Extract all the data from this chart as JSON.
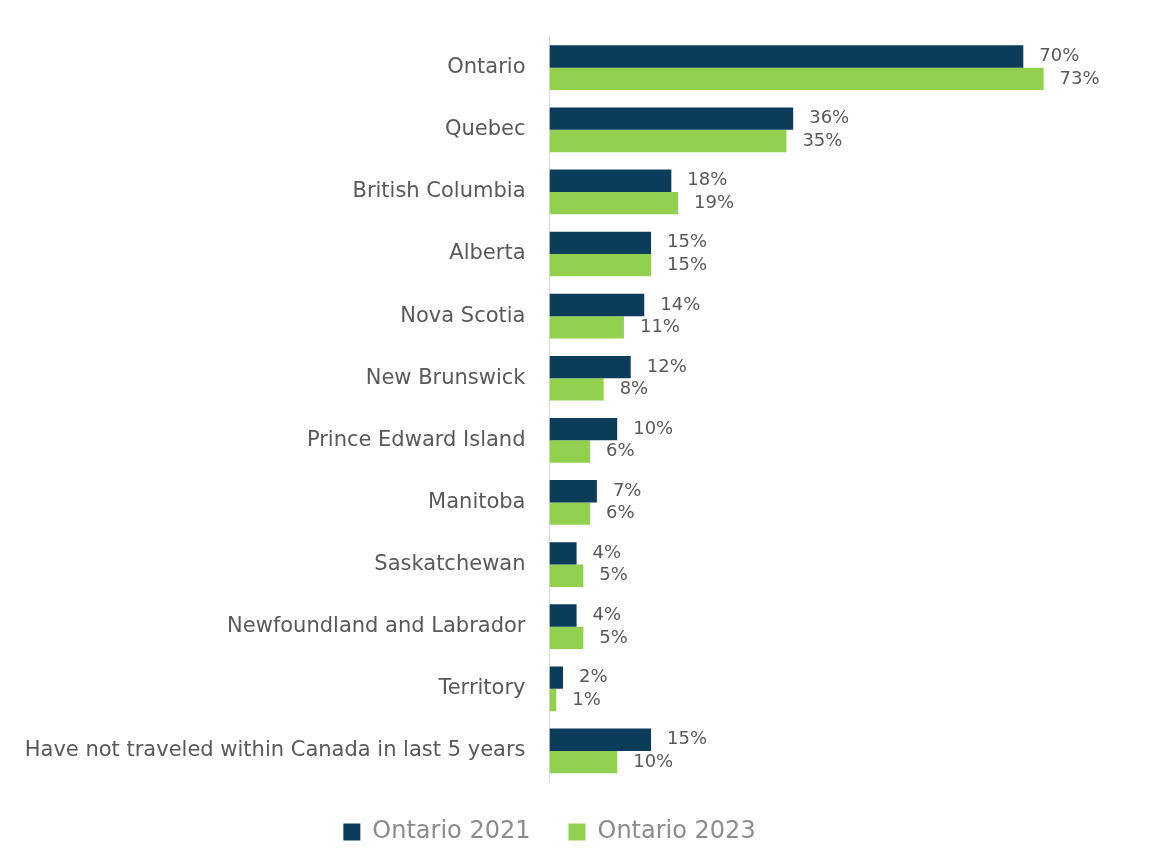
{
  "chart_data": {
    "type": "bar",
    "orientation": "horizontal",
    "categories": [
      "Ontario",
      "Quebec",
      "British Columbia",
      "Alberta",
      "Nova Scotia",
      "New Brunswick",
      "Prince Edward Island",
      "Manitoba",
      "Saskatchewan",
      "Newfoundland and Labrador",
      "Territory",
      "Have not traveled within Canada in last 5 years"
    ],
    "series": [
      {
        "name": "Ontario 2021",
        "color": "#0b3d5a",
        "values": [
          70,
          36,
          18,
          15,
          14,
          12,
          10,
          7,
          4,
          4,
          2,
          15
        ],
        "value_labels": [
          "70%",
          "36%",
          "18%",
          "15%",
          "14%",
          "12%",
          "10%",
          "7%",
          "4%",
          "4%",
          "2%",
          "15%"
        ]
      },
      {
        "name": "Ontario 2023",
        "color": "#92d050",
        "values": [
          73,
          35,
          19,
          15,
          11,
          8,
          6,
          6,
          5,
          5,
          1,
          10
        ],
        "value_labels": [
          "73%",
          "35%",
          "19%",
          "15%",
          "11%",
          "8%",
          "6%",
          "6%",
          "5%",
          "5%",
          "1%",
          "10%"
        ]
      }
    ],
    "tick_labels": "y",
    "grid": false,
    "legend": "bottom"
  }
}
